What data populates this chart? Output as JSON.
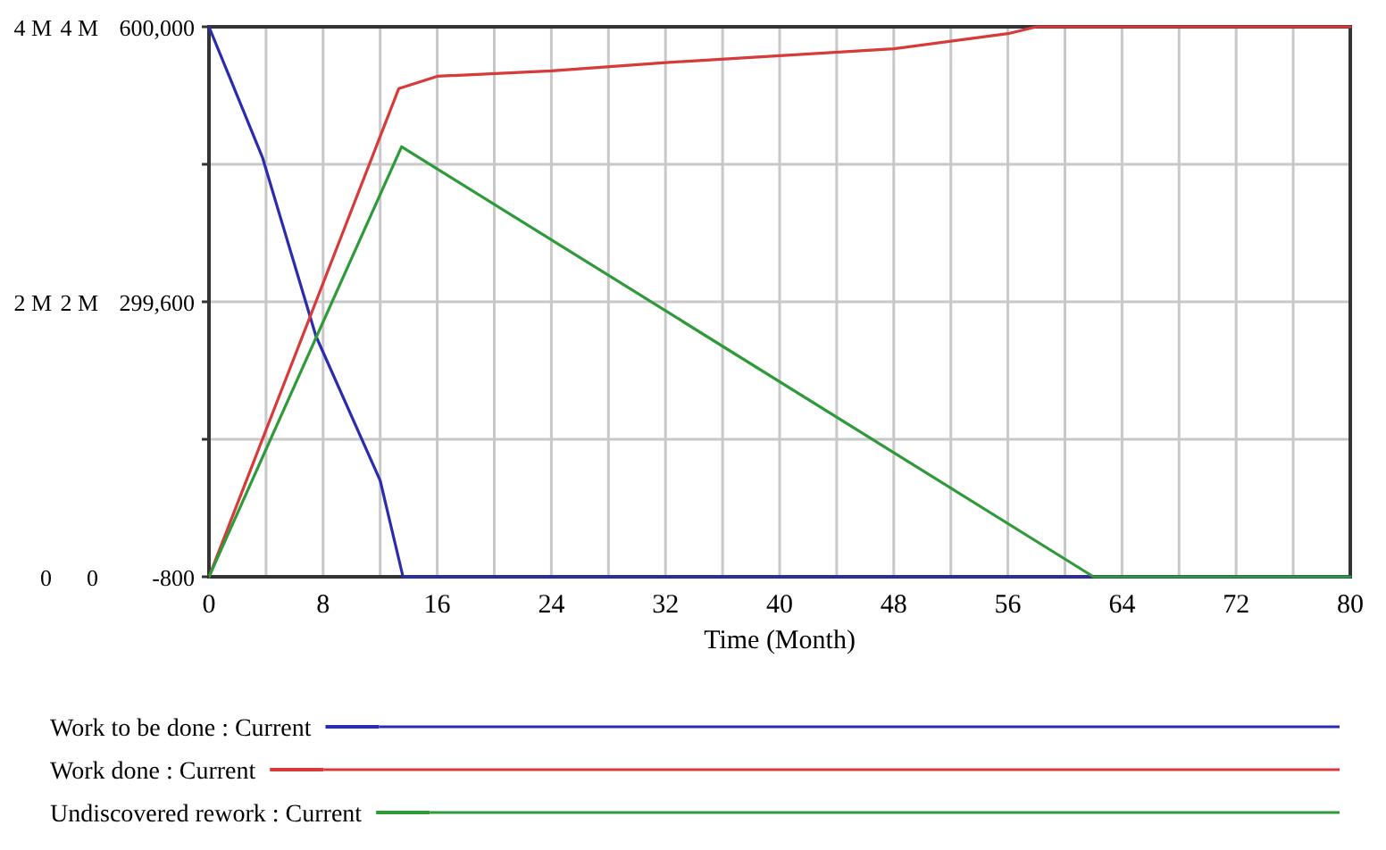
{
  "chart_data": {
    "type": "line",
    "xlabel": "Time (Month)",
    "xlim": [
      0,
      80
    ],
    "xticks": [
      0,
      {
        "value": 4,
        "label": null
      },
      8,
      {
        "value": 12,
        "label": null
      },
      16,
      {
        "value": 20,
        "label": null
      },
      24,
      {
        "value": 28,
        "label": null
      },
      32,
      {
        "value": 36,
        "label": null
      },
      40,
      {
        "value": 44,
        "label": null
      },
      48,
      {
        "value": 52,
        "label": null
      },
      56,
      {
        "value": 60,
        "label": null
      },
      64,
      {
        "value": 68,
        "label": null
      },
      72,
      {
        "value": 76,
        "label": null
      },
      80
    ],
    "ylim": [
      0,
      4000000
    ],
    "yticks": [
      {
        "value": 0,
        "label": "0"
      },
      {
        "value": 1000000,
        "label": null
      },
      {
        "value": 2000000,
        "label": "2 M"
      },
      {
        "value": 3000000,
        "label": null
      },
      {
        "value": 4000000,
        "label": "4 M"
      }
    ],
    "y2lim": [
      0,
      4000000
    ],
    "y2ticks": [
      {
        "value": 0,
        "label": "0"
      },
      {
        "value": 2000000,
        "label": "2 M"
      },
      {
        "value": 4000000,
        "label": "4 M"
      }
    ],
    "y3lim": [
      -800,
      600000
    ],
    "y3ticks": [
      -800,
      {
        "value": 299600,
        "label": "299,600"
      },
      {
        "value": 600000,
        "label": "600,000"
      }
    ],
    "grid": true,
    "legend": "bottom",
    "series": [
      {
        "name": "Work to be done : Current",
        "color": "#2b2bb0",
        "axis": "y",
        "x": [
          0,
          3.75,
          7.5,
          12,
          13.6,
          80
        ],
        "values": [
          4000000,
          3050000,
          1750000,
          700000,
          0,
          0
        ]
      },
      {
        "name": "Work done : Current",
        "color": "#d83a3a",
        "axis": "y2",
        "x": [
          0,
          13.3,
          16,
          24,
          32,
          40,
          48,
          56,
          58,
          80
        ],
        "values": [
          0,
          3550000,
          3640000,
          3680000,
          3740000,
          3790000,
          3840000,
          3950000,
          4000000,
          4000000
        ]
      },
      {
        "name": "Undiscovered rework : Current",
        "color": "#2e9a3a",
        "axis": "y3",
        "x": [
          0,
          13.5,
          62,
          80
        ],
        "values": [
          -800,
          469000,
          -800,
          -800
        ]
      }
    ]
  }
}
